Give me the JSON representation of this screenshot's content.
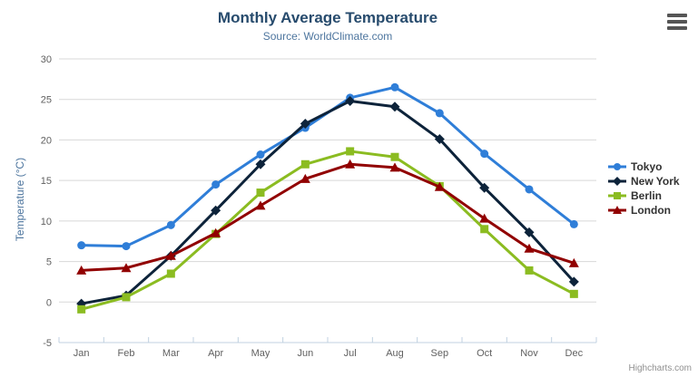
{
  "header": {
    "title": "Monthly Average Temperature",
    "subtitle": "Source: WorldClimate.com"
  },
  "credit": "Highcharts.com",
  "colors": {
    "title": "#274b6d",
    "subtitle": "#4d759e",
    "axis_label": "#606060",
    "axis_line": "#c0d0e0",
    "gridline": "#d8d8d8",
    "legend_text": "#333333",
    "credit": "#909090",
    "background": "#ffffff"
  },
  "chart_data": {
    "type": "line",
    "title": "Monthly Average Temperature",
    "subtitle": "Source: WorldClimate.com",
    "xlabel": "",
    "ylabel": "Temperature (°C)",
    "categories": [
      "Jan",
      "Feb",
      "Mar",
      "Apr",
      "May",
      "Jun",
      "Jul",
      "Aug",
      "Sep",
      "Oct",
      "Nov",
      "Dec"
    ],
    "ylim": [
      -5,
      30
    ],
    "ytick_interval": 5,
    "yticks": [
      -5,
      0,
      5,
      10,
      15,
      20,
      25,
      30
    ],
    "grid": true,
    "legend_position": "right-middle",
    "series": [
      {
        "name": "Tokyo",
        "color": "#2f7ed8",
        "marker": "circle",
        "values": [
          7.0,
          6.9,
          9.5,
          14.5,
          18.2,
          21.5,
          25.2,
          26.5,
          23.3,
          18.3,
          13.9,
          9.6
        ]
      },
      {
        "name": "New York",
        "color": "#0d233a",
        "marker": "diamond",
        "values": [
          -0.2,
          0.8,
          5.7,
          11.3,
          17.0,
          22.0,
          24.8,
          24.1,
          20.1,
          14.1,
          8.6,
          2.5
        ]
      },
      {
        "name": "Berlin",
        "color": "#8bbc21",
        "marker": "square",
        "values": [
          -0.9,
          0.6,
          3.5,
          8.4,
          13.5,
          17.0,
          18.6,
          17.9,
          14.3,
          9.0,
          3.9,
          1.0
        ]
      },
      {
        "name": "London",
        "color": "#910000",
        "marker": "triangle",
        "values": [
          3.9,
          4.2,
          5.7,
          8.5,
          11.9,
          15.2,
          17.0,
          16.6,
          14.2,
          10.3,
          6.6,
          4.8
        ]
      }
    ]
  }
}
